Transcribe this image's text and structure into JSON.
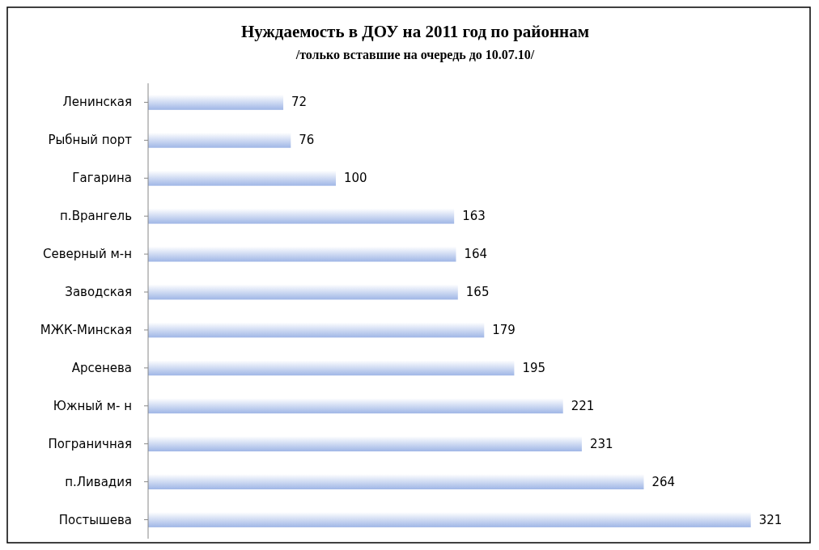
{
  "chart_data": {
    "type": "bar",
    "orientation": "horizontal",
    "title": "Нуждаемость в ДОУ на 2011 год по районнам",
    "subtitle": "/только вставшие на очередь до 10.07.10/",
    "categories": [
      "Ленинская",
      "Рыбный порт",
      "Гагарина",
      "п.Врангель",
      "Северный м-н",
      "Заводская ",
      "МЖК-Минская",
      "Арсенева",
      "Южный м- н",
      "Пограничная",
      "п.Ливадия",
      "Постышева"
    ],
    "values": [
      72,
      76,
      100,
      163,
      164,
      165,
      179,
      195,
      221,
      231,
      264,
      321
    ],
    "color": "#9fb6e6",
    "data_labels": true
  }
}
